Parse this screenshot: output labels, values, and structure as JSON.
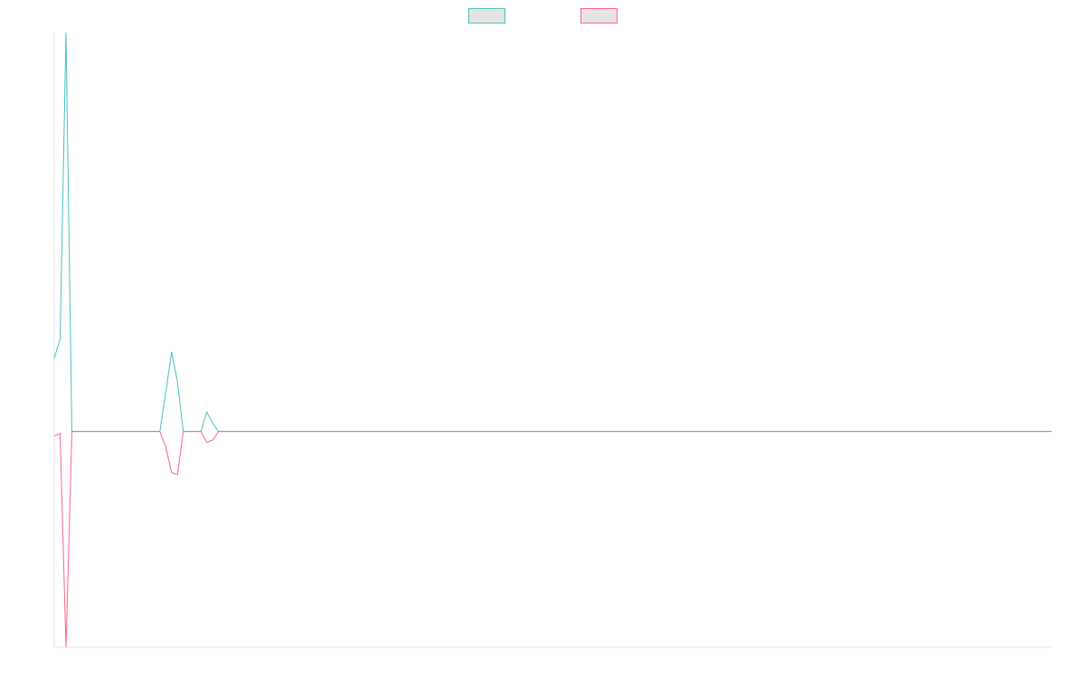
{
  "chart_data": {
    "type": "line",
    "title": "",
    "xlabel": "",
    "ylabel": "",
    "grid": false,
    "legend_position": "top",
    "ylim": [
      -1.0,
      1.85
    ],
    "xlim": [
      0,
      170
    ],
    "colors": {
      "series_1": "#4bc0c0",
      "series_2": "#ff6384",
      "legend_fill": "#e5e5e5",
      "axis": "#e0e0e0"
    },
    "series": [
      {
        "color_key": "series_1",
        "points": [
          [
            0,
            0.34
          ],
          [
            1,
            0.43
          ],
          [
            2,
            1.85
          ],
          [
            3,
            0
          ],
          [
            18,
            0
          ],
          [
            19,
            0.18
          ],
          [
            20,
            0.37
          ],
          [
            21,
            0.23
          ],
          [
            22,
            0
          ],
          [
            25,
            0
          ],
          [
            26,
            0.09
          ],
          [
            27,
            0.04
          ],
          [
            28,
            0
          ],
          [
            170,
            0
          ]
        ]
      },
      {
        "color_key": "series_2",
        "points": [
          [
            0,
            -0.02
          ],
          [
            1,
            -0.01
          ],
          [
            2,
            -1.0
          ],
          [
            3,
            0
          ],
          [
            18,
            0
          ],
          [
            19,
            -0.07
          ],
          [
            20,
            -0.19
          ],
          [
            21,
            -0.2
          ],
          [
            22,
            0
          ],
          [
            25,
            0
          ],
          [
            26,
            -0.05
          ],
          [
            27,
            -0.04
          ],
          [
            28,
            0
          ],
          [
            170,
            0
          ]
        ]
      }
    ]
  }
}
